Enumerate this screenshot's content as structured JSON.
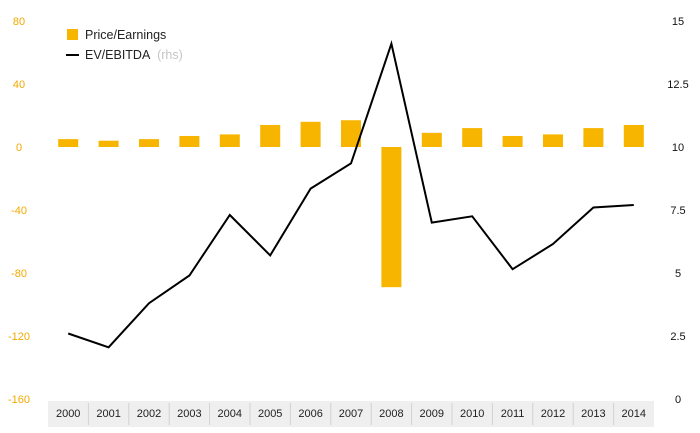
{
  "chart_data": {
    "type": "bar",
    "categories": [
      "2000",
      "2001",
      "2002",
      "2003",
      "2004",
      "2005",
      "2006",
      "2007",
      "2008",
      "2009",
      "2010",
      "2011",
      "2012",
      "2013",
      "2014"
    ],
    "series": [
      {
        "name": "Price/Earnings",
        "type": "bar",
        "axis": "left",
        "color": "#f7b500",
        "values": [
          5,
          4,
          5,
          7,
          8,
          14,
          16,
          17,
          -89,
          9,
          12,
          7,
          8,
          12,
          14
        ]
      },
      {
        "name": "EV/EBITDA",
        "type": "line",
        "axis": "right",
        "color": "#000000",
        "values": [
          2.6,
          2.05,
          3.8,
          4.9,
          7.3,
          5.7,
          8.35,
          9.35,
          14.1,
          7.0,
          7.25,
          5.15,
          6.15,
          7.6,
          7.7
        ]
      }
    ],
    "y_left": {
      "ylim": [
        -160,
        80
      ],
      "ticks": [
        "80",
        "40",
        "0",
        "-40",
        "-80",
        "-120",
        "-160"
      ],
      "color": "#f2a900"
    },
    "y_right": {
      "ylim": [
        0,
        15
      ],
      "ticks": [
        "15",
        "12.5",
        "10",
        "7.5",
        "5",
        "2.5",
        "0"
      ],
      "color": "#111111"
    },
    "legend": {
      "placement": "top-left",
      "items": [
        {
          "label": "Price/Earnings",
          "suffix": ""
        },
        {
          "label": "EV/EBITDA",
          "suffix": "(rhs)"
        }
      ]
    },
    "grid": false,
    "x_axis_band_color": "#efefef"
  }
}
